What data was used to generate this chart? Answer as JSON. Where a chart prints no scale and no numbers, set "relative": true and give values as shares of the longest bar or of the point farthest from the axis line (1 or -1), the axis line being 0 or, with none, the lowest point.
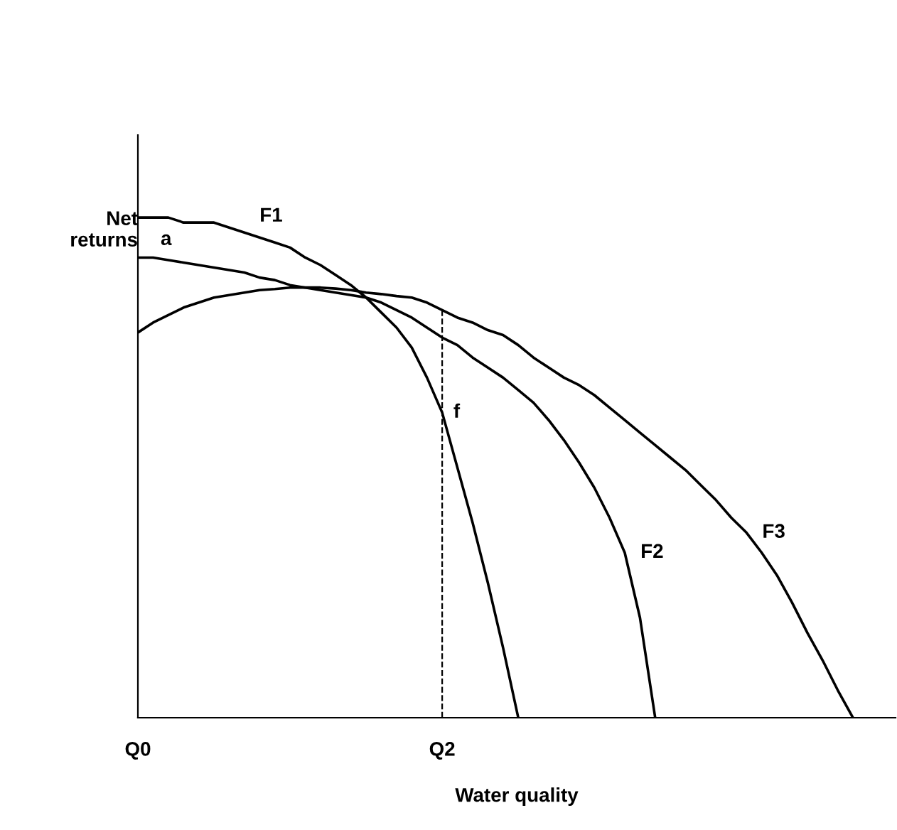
{
  "chart_data": {
    "type": "line",
    "relative": true,
    "xlabel": "Water quality",
    "ylabel": "Net\nreturns",
    "categories": [
      "Q0",
      null,
      null,
      null,
      null,
      null,
      null,
      null,
      null,
      null,
      null,
      null,
      null,
      null,
      null,
      null,
      null,
      null,
      null,
      null,
      "Q2",
      null,
      null,
      null,
      null,
      null,
      null,
      null,
      null,
      null,
      null,
      null,
      null,
      null,
      null,
      null,
      null,
      null,
      null,
      null,
      null,
      null,
      null,
      null,
      null,
      null,
      null,
      null,
      null,
      null
    ],
    "grid": false,
    "legend": false,
    "marker": "none",
    "line_style": "solid",
    "series": [
      {
        "name": "F1",
        "color": "#000000",
        "values": [
          1.0,
          1.0,
          1.0,
          0.99,
          0.99,
          0.99,
          0.98,
          0.97,
          0.96,
          0.95,
          0.94,
          0.92,
          0.905,
          0.885,
          0.865,
          0.84,
          0.81,
          0.78,
          0.74,
          0.68,
          0.61,
          0.5,
          0.39,
          0.27,
          0.14,
          0,
          null,
          null,
          null,
          null,
          null,
          null,
          null,
          null,
          null,
          null,
          null,
          null,
          null,
          null,
          null,
          null,
          null,
          null,
          null,
          null,
          null,
          null,
          null,
          null
        ]
      },
      {
        "name": "F2",
        "color": "#000000",
        "values": [
          0.92,
          0.92,
          0.915,
          0.91,
          0.905,
          0.9,
          0.895,
          0.89,
          0.88,
          0.875,
          0.865,
          0.86,
          0.855,
          0.85,
          0.845,
          0.84,
          0.83,
          0.815,
          0.8,
          0.78,
          0.76,
          0.745,
          0.72,
          0.7,
          0.68,
          0.655,
          0.63,
          0.595,
          0.555,
          0.51,
          0.46,
          0.4,
          0.33,
          0.2,
          0,
          null,
          null,
          null,
          null,
          null,
          null,
          null,
          null,
          null,
          null,
          null,
          null,
          null,
          null,
          null
        ]
      },
      {
        "name": "F3",
        "color": "#000000",
        "values": [
          0.77,
          0.79,
          0.805,
          0.82,
          0.83,
          0.84,
          0.845,
          0.85,
          0.855,
          0.857,
          0.86,
          0.86,
          0.86,
          0.858,
          0.855,
          0.85,
          0.847,
          0.843,
          0.84,
          0.83,
          0.815,
          0.8,
          0.79,
          0.775,
          0.765,
          0.745,
          0.72,
          0.7,
          0.68,
          0.665,
          0.645,
          0.62,
          0.595,
          0.57,
          0.545,
          0.52,
          0.495,
          0.465,
          0.435,
          0.4,
          0.37,
          0.33,
          0.285,
          0.23,
          0.17,
          0.115,
          0.055,
          0,
          null,
          null
        ]
      }
    ],
    "ref_lines": [
      {
        "axis": "x",
        "value": "Q2",
        "line_style": "dashed",
        "color": "#000000"
      }
    ],
    "annotations": [
      "a",
      {
        "text": "f",
        "x": "Q2",
        "y": 0.61
      }
    ]
  }
}
